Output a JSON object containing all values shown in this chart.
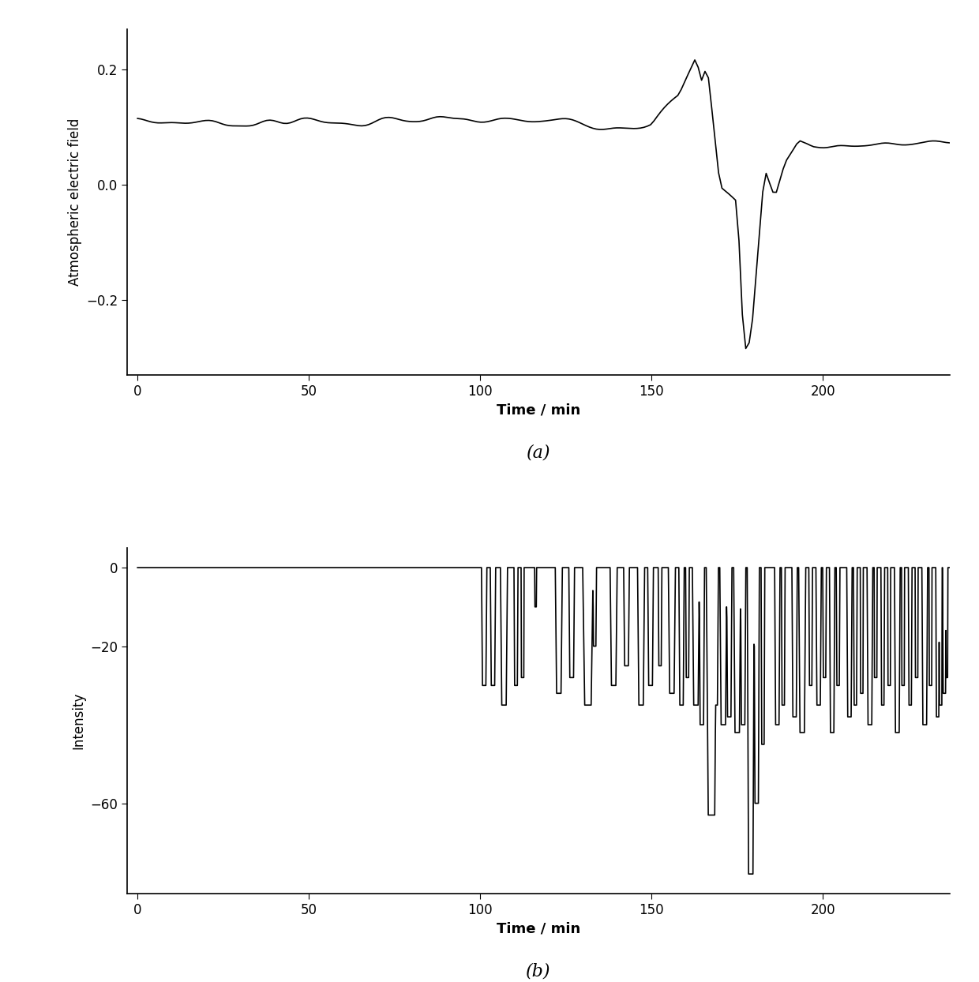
{
  "fig_width": 12.4,
  "fig_height": 12.44,
  "dpi": 100,
  "bg_color": "#ffffff",
  "line_color": "#000000",
  "line_width": 1.2,
  "subplot_a": {
    "xlabel": "Time / min",
    "ylabel": "Atmospheric electric field",
    "xlim": [
      -3,
      237
    ],
    "ylim": [
      -0.33,
      0.27
    ],
    "xticks": [
      0,
      50,
      100,
      150,
      200
    ],
    "yticks": [
      -0.2,
      0.0,
      0.2
    ],
    "label": "(a)"
  },
  "subplot_b": {
    "xlabel": "Time / min",
    "ylabel": "Intensity",
    "xlim": [
      -3,
      237
    ],
    "ylim": [
      -83,
      5
    ],
    "xticks": [
      0,
      50,
      100,
      150,
      200
    ],
    "yticks": [
      -60,
      -20,
      0
    ],
    "label": "(b)"
  }
}
